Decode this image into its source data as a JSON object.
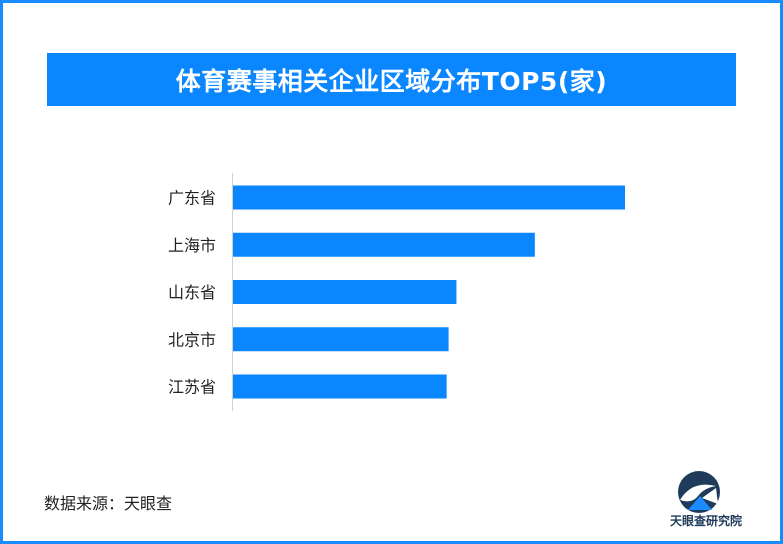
{
  "title": "体育赛事相关企业区域分布TOP5(家)",
  "source": "数据来源：天眼查",
  "logo": {
    "text": "天眼查研究院",
    "icon": "tianyancha-logo-icon"
  },
  "colors": {
    "bar": "#0a86ff",
    "banner": "#0a86ff",
    "border": "#1a8cff"
  },
  "chart_data": {
    "type": "bar",
    "orientation": "horizontal",
    "title": "体育赛事相关企业区域分布TOP5(家)",
    "categories": [
      "广东省",
      "上海市",
      "山东省",
      "北京市",
      "江苏省"
    ],
    "values": [
      100,
      77,
      57,
      55,
      54.5
    ],
    "xlabel": "",
    "ylabel": "",
    "xlim": [
      0,
      100
    ],
    "grid": false,
    "legend": "none"
  }
}
